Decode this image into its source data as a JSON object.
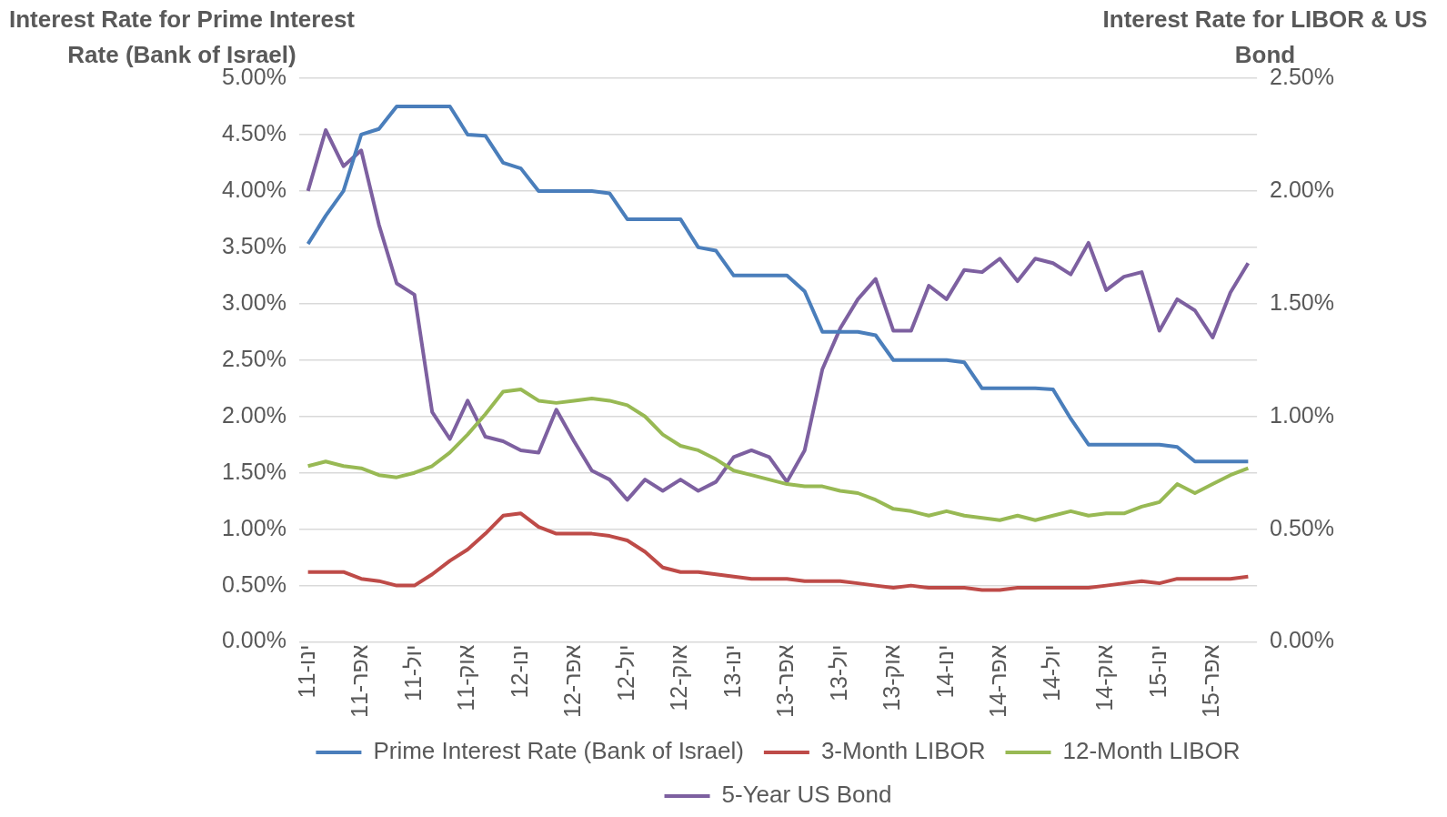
{
  "chart_data": {
    "type": "line",
    "ylabel": "Interest Rate for Prime Interest Rate (Bank of Israel)",
    "y2label": "Interest Rate for LIBOR & US Bond",
    "categories": [
      "ינו-11",
      null,
      null,
      "אפר-11",
      null,
      null,
      "יול-11",
      null,
      null,
      "אוק-11",
      null,
      null,
      "ינו-12",
      null,
      null,
      "אפר-12",
      null,
      null,
      "יול-12",
      null,
      null,
      "אוק-12",
      null,
      null,
      "ינו-13",
      null,
      null,
      "אפר-13",
      null,
      null,
      "יול-13",
      null,
      null,
      "אוק-13",
      null,
      null,
      "ינו-14",
      null,
      null,
      "אפר-14",
      null,
      null,
      "יול-14",
      null,
      null,
      "אוק-14",
      null,
      null,
      "ינו-15",
      null,
      null,
      "אפר-15",
      null,
      null
    ],
    "series": [
      {
        "name": "Prime Interest Rate (Bank of Israel)",
        "color": "#4a7ebb",
        "values": [
          3.53,
          3.78,
          4.0,
          4.5,
          4.55,
          4.75,
          4.75,
          4.75,
          4.75,
          4.5,
          4.49,
          4.25,
          4.2,
          4.0,
          4.0,
          4.0,
          4.0,
          3.98,
          3.75,
          3.75,
          3.75,
          3.75,
          3.5,
          3.47,
          3.25,
          3.25,
          3.25,
          3.25,
          3.11,
          2.75,
          2.75,
          2.75,
          2.72,
          2.5,
          2.5,
          2.5,
          2.5,
          2.48,
          2.25,
          2.25,
          2.25,
          2.25,
          2.24,
          1.98,
          1.75,
          1.75,
          1.75,
          1.75,
          1.75,
          1.73,
          1.6,
          1.6,
          1.6,
          1.6
        ]
      },
      {
        "name": "3-Month LIBOR",
        "color": "#be4b48",
        "axis": "y2",
        "values": [
          0.31,
          0.31,
          0.31,
          0.28,
          0.27,
          0.25,
          0.25,
          0.3,
          0.36,
          0.41,
          0.48,
          0.56,
          0.57,
          0.51,
          0.48,
          0.48,
          0.48,
          0.47,
          0.45,
          0.4,
          0.33,
          0.31,
          0.31,
          0.3,
          0.29,
          0.28,
          0.28,
          0.28,
          0.27,
          0.27,
          0.27,
          0.26,
          0.25,
          0.24,
          0.25,
          0.24,
          0.24,
          0.24,
          0.23,
          0.23,
          0.24,
          0.24,
          0.24,
          0.24,
          0.24,
          0.25,
          0.26,
          0.27,
          0.26,
          0.28,
          0.28,
          0.28,
          0.28,
          0.29
        ]
      },
      {
        "name": "12-Month LIBOR",
        "color": "#98b954",
        "axis": "y2",
        "values": [
          0.78,
          0.8,
          0.78,
          0.77,
          0.74,
          0.73,
          0.75,
          0.78,
          0.84,
          0.92,
          1.01,
          1.11,
          1.12,
          1.07,
          1.06,
          1.07,
          1.08,
          1.07,
          1.05,
          1.0,
          0.92,
          0.87,
          0.85,
          0.81,
          0.76,
          0.74,
          0.72,
          0.7,
          0.69,
          0.69,
          0.67,
          0.66,
          0.63,
          0.59,
          0.58,
          0.56,
          0.58,
          0.56,
          0.55,
          0.54,
          0.56,
          0.54,
          0.56,
          0.58,
          0.56,
          0.57,
          0.57,
          0.6,
          0.62,
          0.7,
          0.66,
          0.7,
          0.74,
          0.77
        ]
      },
      {
        "name": "5-Year US Bond",
        "color": "#7d60a0",
        "axis": "y2",
        "values": [
          2.0,
          2.27,
          2.11,
          2.18,
          1.85,
          1.59,
          1.54,
          1.02,
          0.9,
          1.07,
          0.91,
          0.89,
          0.85,
          0.84,
          1.03,
          0.89,
          0.76,
          0.72,
          0.63,
          0.72,
          0.67,
          0.72,
          0.67,
          0.71,
          0.82,
          0.85,
          0.82,
          0.71,
          0.85,
          1.21,
          1.39,
          1.52,
          1.61,
          1.38,
          1.38,
          1.58,
          1.52,
          1.65,
          1.64,
          1.7,
          1.6,
          1.7,
          1.68,
          1.63,
          1.77,
          1.56,
          1.62,
          1.64,
          1.38,
          1.52,
          1.47,
          1.35,
          1.55,
          1.68
        ]
      }
    ],
    "ylim": [
      0,
      5
    ],
    "yticks": [
      {
        "value": 0,
        "label": "0.00%"
      },
      {
        "value": 0.5,
        "label": "0.50%"
      },
      {
        "value": 1,
        "label": "1.00%"
      },
      {
        "value": 1.5,
        "label": "1.50%"
      },
      {
        "value": 2,
        "label": "2.00%"
      },
      {
        "value": 2.5,
        "label": "2.50%"
      },
      {
        "value": 3,
        "label": "3.00%"
      },
      {
        "value": 3.5,
        "label": "3.50%"
      },
      {
        "value": 4,
        "label": "4.00%"
      },
      {
        "value": 4.5,
        "label": "4.50%"
      },
      {
        "value": 5,
        "label": "5.00%"
      }
    ],
    "y2lim": [
      0,
      2.5
    ],
    "y2ticks": [
      {
        "value": 0,
        "label": "0.00%"
      },
      {
        "value": 0.5,
        "label": "0.50%"
      },
      {
        "value": 1,
        "label": "1.00%"
      },
      {
        "value": 1.5,
        "label": "1.50%"
      },
      {
        "value": 2,
        "label": "2.00%"
      },
      {
        "value": 2.5,
        "label": "2.50%"
      }
    ],
    "grid": "y",
    "legend": "bottom",
    "marker": "none",
    "line_style": "solid"
  }
}
